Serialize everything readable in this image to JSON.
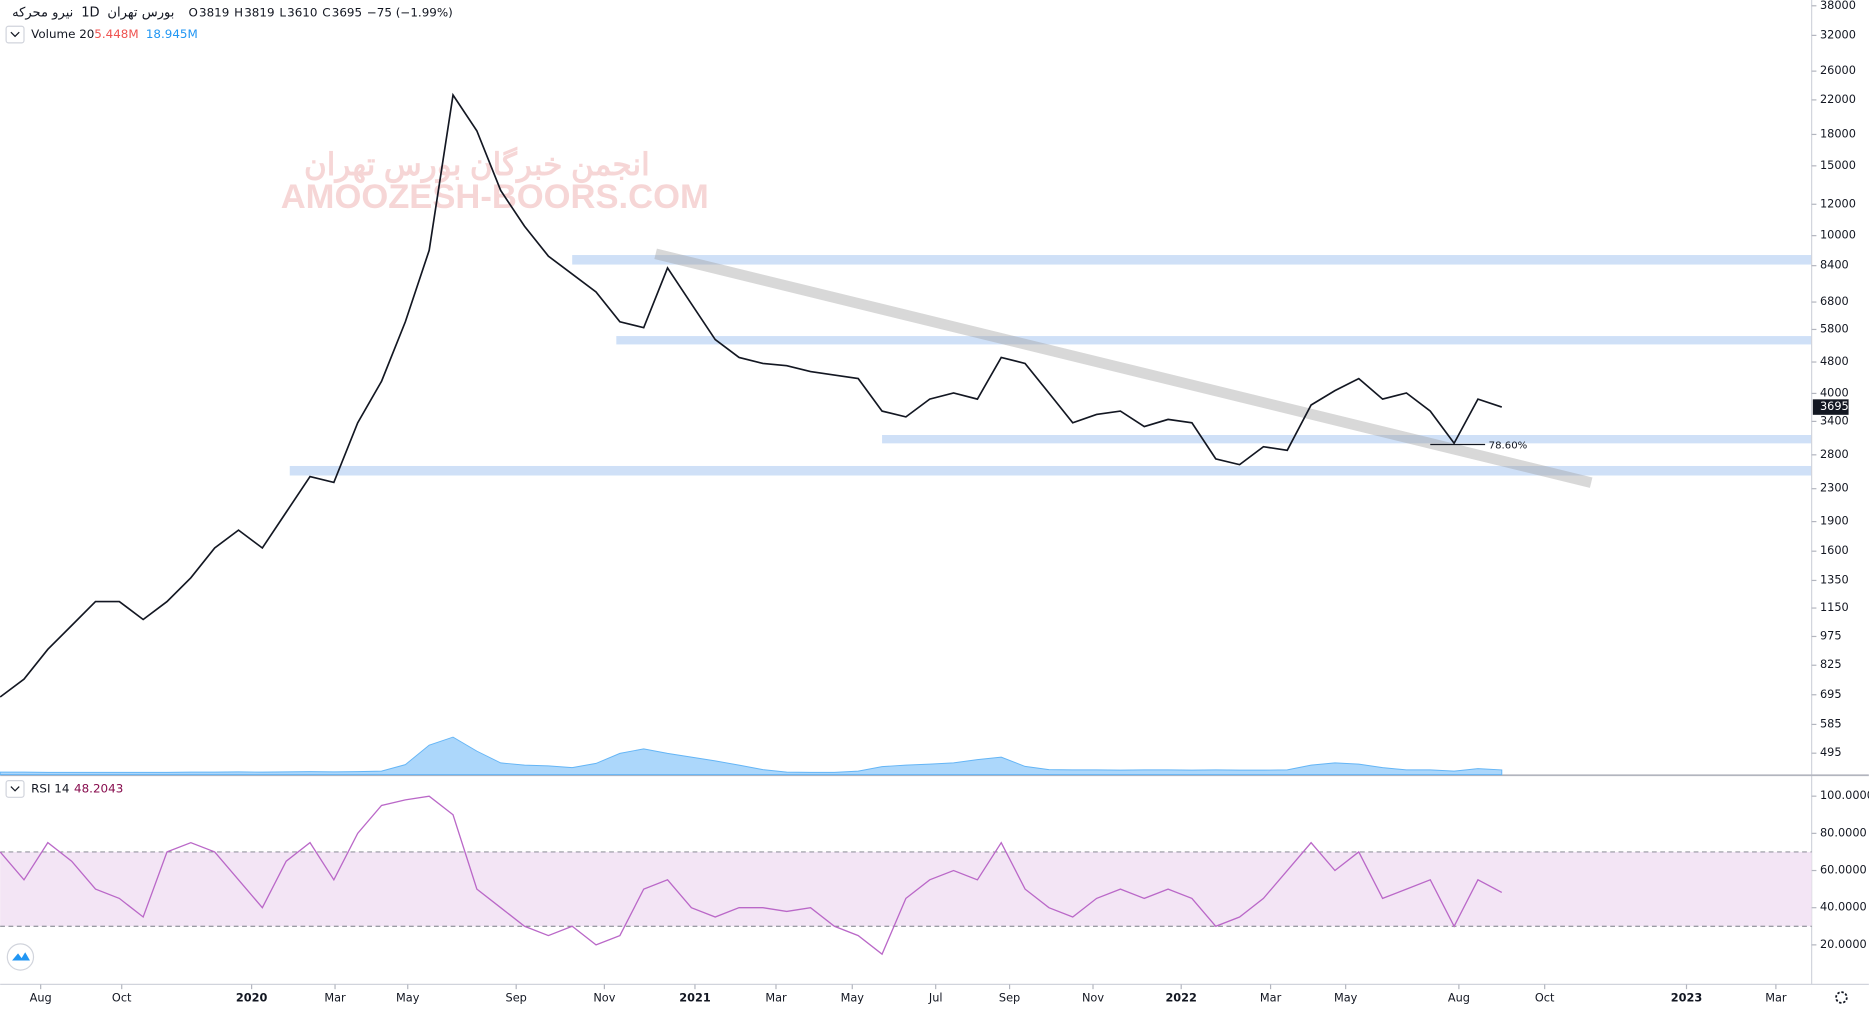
{
  "chart_data": [
    {
      "type": "line",
      "symbol": "نیرو محرکه",
      "interval": "1D",
      "exchange": "بورس تهران",
      "ohlc": [
        {
          "label": "O",
          "value": 3819
        },
        {
          "label": "H",
          "value": 3819
        },
        {
          "label": "L",
          "value": 3610
        },
        {
          "label": "C",
          "value": 3695
        }
      ],
      "change": "−75 (−1.99%)",
      "annotation": "78.60%",
      "watermark": [
        "انجمن خبرگان بورس تهران",
        "AMOOZESH-BOORS.COM"
      ],
      "color": "#131722",
      "log_scale": true,
      "xlim": [
        0,
        76
      ],
      "ylim": [
        437,
        39300
      ],
      "yticks": [
        38000,
        32000,
        26000,
        22000,
        18000,
        15000,
        12000,
        10000,
        8400,
        6800,
        5800,
        4800,
        4000,
        3400,
        2800,
        2300,
        1900,
        1600,
        1350,
        1150,
        975,
        825,
        695,
        585,
        495
      ],
      "values": [
        686,
        761,
        905,
        1039,
        1194,
        1194,
        1076,
        1194,
        1371,
        1630,
        1808,
        1630,
        2006,
        2468,
        2386,
        3372,
        4291,
        6065,
        9184,
        22630,
        18380,
        13000,
        10560,
        8880,
        8000,
        7210,
        6065,
        5860,
        8290,
        6730,
        5470,
        4930,
        4760,
        4700,
        4540,
        4450,
        4360,
        3610,
        3490,
        3870,
        4010,
        3870,
        4930,
        4760,
        4010,
        3372,
        3540,
        3610,
        3300,
        3440,
        3372,
        2735,
        2645,
        2935,
        2875,
        3740,
        4065,
        4360,
        3870,
        4010,
        3610,
        2995,
        3870,
        3695
      ],
      "volume": {
        "name": "Volume 20",
        "legend_values": [
          "5.448M",
          "18.945M"
        ],
        "legend_colors": [
          "#ef5350",
          "#2196f3"
        ],
        "color": "#90caf9",
        "ma_values": [
          10,
          10,
          9,
          9,
          9,
          9,
          9,
          9,
          10,
          10,
          11,
          10,
          11,
          12,
          11,
          12,
          14,
          40,
          118,
          150,
          94,
          47,
          38,
          35,
          28,
          45,
          85,
          103,
          85,
          70,
          55,
          38,
          20,
          10,
          9,
          9,
          14,
          32,
          38,
          42,
          47,
          60,
          70,
          33,
          20,
          19,
          19,
          18,
          19,
          19,
          18,
          19,
          18,
          18,
          19,
          38,
          47,
          42,
          28,
          19,
          19,
          14,
          24,
          19
        ]
      }
    },
    {
      "type": "line",
      "name": "RSI 14",
      "color": "#ba68c8",
      "band_color": "#f3e5f5",
      "bands": [
        30,
        70
      ],
      "xlim": [
        0,
        76
      ],
      "ylim": [
        1.3,
        110.3
      ],
      "yticks": [
        {
          "value": 100,
          "label": "100.0000"
        },
        {
          "value": 80,
          "label": "80.0000"
        },
        {
          "value": 60,
          "label": "60.0000"
        },
        {
          "value": 40,
          "label": "40.0000"
        },
        {
          "value": 20,
          "label": "20.0000"
        }
      ],
      "xticks": [
        {
          "value": 1.7,
          "label": "Aug"
        },
        {
          "value": 5.1,
          "label": "Oct"
        },
        {
          "value": 10.55,
          "label": "2020"
        },
        {
          "value": 14.05,
          "label": "Mar"
        },
        {
          "value": 17.1,
          "label": "May"
        },
        {
          "value": 21.65,
          "label": "Sep"
        },
        {
          "value": 25.35,
          "label": "Nov"
        },
        {
          "value": 29.15,
          "label": "2021"
        },
        {
          "value": 32.55,
          "label": "Mar"
        },
        {
          "value": 35.75,
          "label": "May"
        },
        {
          "value": 39.25,
          "label": "Jul"
        },
        {
          "value": 42.35,
          "label": "Sep"
        },
        {
          "value": 45.85,
          "label": "Nov"
        },
        {
          "value": 49.55,
          "label": "2022"
        },
        {
          "value": 53.3,
          "label": "Mar"
        },
        {
          "value": 56.45,
          "label": "May"
        },
        {
          "value": 61.2,
          "label": "Aug"
        },
        {
          "value": 64.8,
          "label": "Oct"
        },
        {
          "value": 70.75,
          "label": "2023"
        },
        {
          "value": 74.5,
          "label": "Mar"
        }
      ],
      "values": [
        70,
        55,
        75,
        65,
        50,
        45,
        35,
        70,
        75,
        70,
        55,
        40,
        65,
        75,
        55,
        80,
        95,
        98,
        100,
        90,
        50,
        40,
        30,
        25,
        30,
        20,
        25,
        50,
        55,
        40,
        35,
        40,
        40,
        38,
        40,
        30,
        25,
        15,
        45,
        55,
        60,
        55,
        75,
        50,
        40,
        35,
        45,
        50,
        45,
        50,
        45,
        30,
        35,
        45,
        60,
        75,
        60,
        70,
        45,
        50,
        55,
        30,
        55,
        48.2043
      ]
    }
  ]
}
